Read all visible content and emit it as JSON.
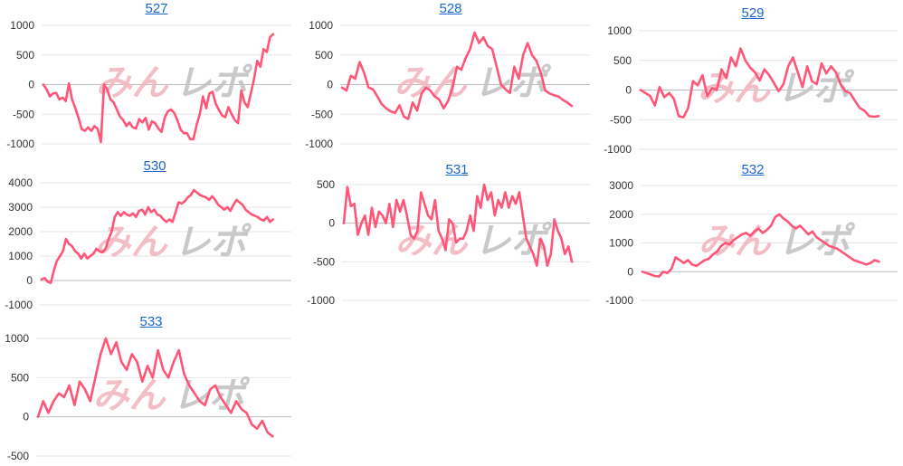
{
  "colors": {
    "line": "#ff5577",
    "title_link": "#1a66cc",
    "watermark_left": "#f2b8c0",
    "watermark_right": "#c4c4c4"
  },
  "watermark": {
    "left": "みん",
    "right": "レポ"
  },
  "chart_data": [
    {
      "type": "line",
      "title": "527",
      "ylim": [
        -1000,
        1000
      ],
      "yticks": [
        1000,
        500,
        0,
        -500,
        -1000
      ],
      "grid": true,
      "series": [
        {
          "values": [
            0,
            -80,
            -200,
            -150,
            -140,
            -250,
            -220,
            -280,
            20,
            -250,
            -400,
            -560,
            -750,
            -780,
            -720,
            -780,
            -700,
            -750,
            -970,
            0,
            -80,
            -250,
            -300,
            -420,
            -540,
            -600,
            -700,
            -640,
            -720,
            -740,
            -580,
            -640,
            -560,
            -760,
            -620,
            -650,
            -740,
            -800,
            -560,
            -450,
            -420,
            -480,
            -600,
            -760,
            -820,
            -820,
            -920,
            -920,
            -680,
            -500,
            -200,
            -400,
            -150,
            -120,
            -320,
            -430,
            -520,
            -550,
            -380,
            -500,
            -600,
            -650,
            -100,
            -300,
            -380,
            -150,
            100,
            400,
            300,
            600,
            550,
            800,
            850
          ]
        }
      ]
    },
    {
      "type": "line",
      "title": "528",
      "ylim": [
        -1000,
        1000
      ],
      "yticks": [
        1000,
        500,
        0,
        -500,
        -1000
      ],
      "grid": true,
      "series": [
        {
          "values": [
            -50,
            -100,
            150,
            100,
            380,
            200,
            -50,
            -80,
            -200,
            -330,
            -400,
            -450,
            -480,
            -350,
            -540,
            -580,
            -300,
            -440,
            -150,
            -50,
            -100,
            -200,
            -250,
            -400,
            -280,
            -50,
            300,
            250,
            450,
            600,
            880,
            700,
            800,
            650,
            600,
            300,
            0,
            -80,
            -140,
            300,
            100,
            500,
            700,
            500,
            400,
            200,
            -100,
            -150,
            -180,
            -200,
            -260,
            -300,
            -360
          ]
        }
      ]
    },
    {
      "type": "line",
      "title": "529",
      "ylim": [
        -1000,
        1000
      ],
      "yticks": [
        1000,
        500,
        0,
        -500,
        -1000
      ],
      "grid": true,
      "series": [
        {
          "values": [
            0,
            -50,
            -100,
            -260,
            50,
            -120,
            -50,
            -150,
            -440,
            -460,
            -300,
            150,
            80,
            250,
            -100,
            30,
            0,
            350,
            200,
            550,
            400,
            700,
            500,
            380,
            300,
            160,
            350,
            250,
            120,
            -20,
            100,
            400,
            550,
            300,
            50,
            400,
            150,
            100,
            450,
            280,
            400,
            300,
            100,
            -20,
            -50,
            -180,
            -300,
            -350,
            -440,
            -450,
            -440
          ]
        }
      ]
    },
    {
      "type": "line",
      "title": "530",
      "ylim": [
        -1000,
        4000
      ],
      "yticks": [
        4000,
        3000,
        2000,
        1000,
        0,
        -1000
      ],
      "grid": true,
      "series": [
        {
          "values": [
            50,
            100,
            -50,
            -100,
            400,
            800,
            1000,
            1200,
            1700,
            1500,
            1400,
            1200,
            1100,
            900,
            1100,
            900,
            1000,
            1100,
            1300,
            1200,
            1150,
            1300,
            1700,
            2000,
            2600,
            2800,
            2650,
            2800,
            2700,
            2650,
            2750,
            2600,
            2850,
            2900,
            2700,
            3000,
            2800,
            2900,
            2700,
            2650,
            2500,
            2400,
            2500,
            2400,
            2800,
            3200,
            3150,
            3250,
            3400,
            3500,
            3700,
            3600,
            3500,
            3450,
            3400,
            3300,
            3450,
            3300,
            3100,
            3000,
            2900,
            3000,
            2850,
            3100,
            3300,
            3200,
            3100,
            2900,
            2800,
            2700,
            2650,
            2600,
            2500,
            2450,
            2600,
            2400,
            2500
          ]
        }
      ]
    },
    {
      "type": "line",
      "title": "531",
      "ylim": [
        -1000,
        500
      ],
      "yticks": [
        500,
        0,
        -500,
        -1000
      ],
      "grid": true,
      "series": [
        {
          "values": [
            0,
            470,
            220,
            250,
            -150,
            0,
            100,
            -150,
            200,
            -50,
            150,
            100,
            0,
            250,
            -50,
            300,
            150,
            300,
            100,
            -150,
            -200,
            -100,
            400,
            250,
            100,
            50,
            300,
            -100,
            -200,
            -350,
            50,
            0,
            -250,
            -200,
            -200,
            -100,
            100,
            -100,
            350,
            200,
            500,
            300,
            400,
            100,
            300,
            200,
            400,
            200,
            350,
            250,
            400,
            100,
            -200,
            -300,
            -400,
            -550,
            -200,
            -300,
            -550,
            -400,
            50,
            -100,
            -200,
            -400,
            -300,
            -500
          ]
        }
      ]
    },
    {
      "type": "line",
      "title": "532",
      "ylim": [
        -1000,
        3000
      ],
      "yticks": [
        3000,
        2000,
        1000,
        0,
        -1000
      ],
      "grid": true,
      "series": [
        {
          "values": [
            0,
            -50,
            -100,
            -150,
            -170,
            0,
            -50,
            100,
            500,
            400,
            300,
            400,
            250,
            200,
            300,
            400,
            450,
            600,
            700,
            900,
            1000,
            950,
            1100,
            1200,
            1300,
            1350,
            1250,
            1400,
            1500,
            1350,
            1450,
            1600,
            1900,
            2000,
            1850,
            1750,
            1600,
            1500,
            1600,
            1450,
            1300,
            1400,
            1200,
            1100,
            1000,
            900,
            850,
            800,
            700,
            600,
            500,
            400,
            350,
            300,
            250,
            300,
            400,
            350
          ]
        }
      ]
    },
    {
      "type": "line",
      "title": "533",
      "ylim": [
        -500,
        1000
      ],
      "yticks": [
        1000,
        500,
        0,
        -500
      ],
      "grid": true,
      "series": [
        {
          "values": [
            0,
            200,
            50,
            200,
            300,
            250,
            400,
            150,
            450,
            350,
            200,
            500,
            800,
            1000,
            800,
            950,
            700,
            600,
            800,
            700,
            450,
            650,
            500,
            850,
            600,
            500,
            700,
            850,
            550,
            400,
            300,
            200,
            150,
            350,
            400,
            250,
            150,
            50,
            200,
            100,
            50,
            -100,
            -150,
            -50,
            -200,
            -250
          ]
        }
      ]
    }
  ]
}
